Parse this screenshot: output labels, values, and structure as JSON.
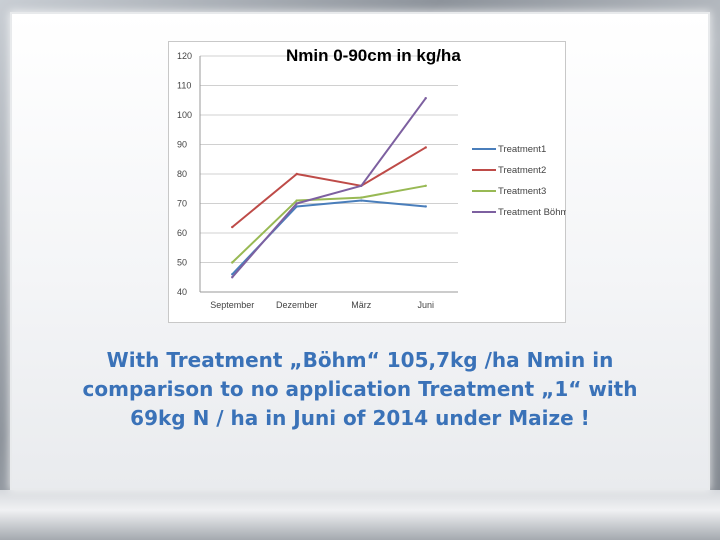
{
  "chart_data": {
    "type": "line",
    "title": "Nmin 0-90cm in kg/ha",
    "categories": [
      "September",
      "Dezember",
      "März",
      "Juni"
    ],
    "ylim": [
      40,
      120
    ],
    "yticks": [
      "40",
      "50",
      "60",
      "70",
      "80",
      "90",
      "100",
      "110",
      "120"
    ],
    "grid": true,
    "legend": "right",
    "series": [
      {
        "name": "Treatment1",
        "color": "#4a7ebb",
        "values": [
          46,
          69,
          71,
          69
        ]
      },
      {
        "name": "Treatment2",
        "color": "#be4b48",
        "values": [
          62,
          80,
          76,
          89
        ]
      },
      {
        "name": "Treatment3",
        "color": "#98b954",
        "values": [
          50,
          71,
          72,
          76
        ]
      },
      {
        "name": "Treatment Böhm",
        "color": "#7d60a0",
        "values": [
          45,
          70,
          76,
          105.7
        ]
      }
    ]
  },
  "caption": {
    "line1": "With Treatment „Böhm“ 105,7kg /ha Nmin in",
    "line2": "comparison to no application Treatment „1“ with",
    "line3": "69kg N / ha in Juni of 2014 under Maize !"
  }
}
